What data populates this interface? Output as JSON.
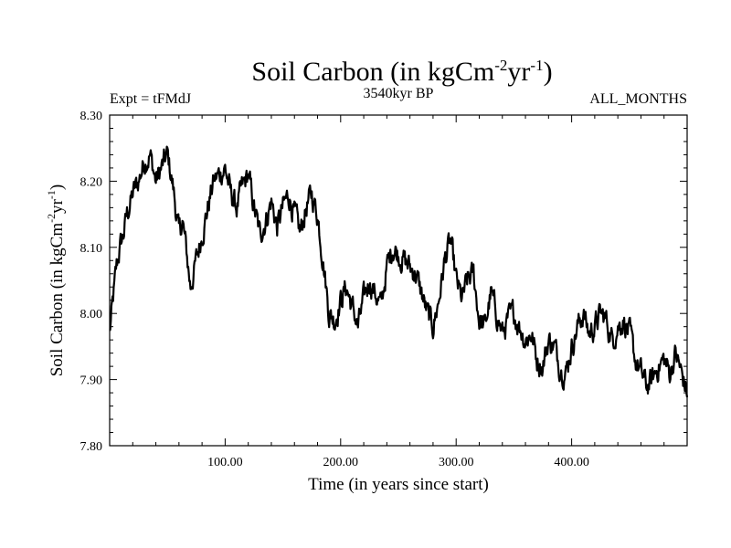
{
  "chart_data": {
    "type": "line",
    "title": "Soil Carbon (in kgCm",
    "title_exp1": "-2",
    "title_mid": "yr",
    "title_exp2": "-1",
    "title_end": ")",
    "left_label": "Expt = tFMdJ",
    "center_label": "3540kyr BP",
    "right_label": "ALL_MONTHS",
    "xlabel": "Time (in years since start)",
    "ylabel": "Soil Carbon (in kgCm",
    "ylabel_exp1": "-2",
    "ylabel_mid": "yr",
    "ylabel_exp2": "-1",
    "ylabel_end": ")",
    "xlim": [
      0,
      500
    ],
    "ylim": [
      7.8,
      8.3
    ],
    "xticks": [
      100,
      200,
      300,
      400
    ],
    "xtick_labels": [
      "100.00",
      "200.00",
      "300.00",
      "400.00"
    ],
    "yticks": [
      7.8,
      7.9,
      8.0,
      8.1,
      8.2,
      8.3
    ],
    "ytick_labels": [
      "7.80",
      "7.90",
      "8.00",
      "8.10",
      "8.20",
      "8.30"
    ],
    "series": [
      {
        "name": "Soil Carbon",
        "color": "#000000",
        "x": [
          0,
          3,
          6,
          9,
          12,
          15,
          20,
          25,
          30,
          35,
          40,
          45,
          50,
          55,
          60,
          63,
          66,
          70,
          75,
          80,
          85,
          90,
          95,
          100,
          105,
          110,
          115,
          120,
          125,
          130,
          135,
          140,
          145,
          150,
          155,
          160,
          165,
          170,
          175,
          180,
          185,
          190,
          195,
          200,
          205,
          210,
          215,
          220,
          225,
          230,
          235,
          240,
          245,
          250,
          255,
          260,
          265,
          270,
          275,
          280,
          285,
          290,
          295,
          300,
          305,
          310,
          315,
          320,
          325,
          330,
          335,
          340,
          345,
          350,
          355,
          360,
          365,
          370,
          375,
          380,
          385,
          390,
          395,
          400,
          405,
          410,
          415,
          420,
          425,
          430,
          435,
          440,
          445,
          450,
          455,
          460,
          465,
          470,
          475,
          480,
          485,
          490,
          495,
          500
        ],
        "values": [
          7.97,
          8.02,
          8.07,
          8.1,
          8.12,
          8.15,
          8.18,
          8.2,
          8.23,
          8.24,
          8.2,
          8.22,
          8.24,
          8.19,
          8.12,
          8.14,
          8.1,
          8.04,
          8.08,
          8.12,
          8.16,
          8.2,
          8.21,
          8.22,
          8.18,
          8.16,
          8.19,
          8.21,
          8.16,
          8.12,
          8.14,
          8.17,
          8.13,
          8.16,
          8.18,
          8.15,
          8.12,
          8.16,
          8.18,
          8.15,
          8.08,
          8.0,
          7.99,
          8.02,
          8.04,
          8.01,
          7.98,
          8.02,
          8.05,
          8.03,
          8.01,
          8.07,
          8.1,
          8.09,
          8.08,
          8.07,
          8.06,
          8.03,
          8.0,
          7.98,
          8.02,
          8.08,
          8.11,
          8.05,
          8.02,
          8.05,
          8.06,
          7.99,
          7.98,
          8.03,
          8.0,
          7.97,
          7.99,
          8.0,
          7.98,
          7.96,
          7.97,
          7.93,
          7.92,
          7.96,
          7.95,
          7.92,
          7.91,
          7.95,
          7.98,
          8.0,
          7.97,
          7.98,
          8.0,
          7.99,
          7.96,
          7.98,
          7.99,
          7.97,
          7.93,
          7.91,
          7.89,
          7.9,
          7.92,
          7.93,
          7.91,
          7.94,
          7.91,
          7.88
        ]
      }
    ]
  }
}
